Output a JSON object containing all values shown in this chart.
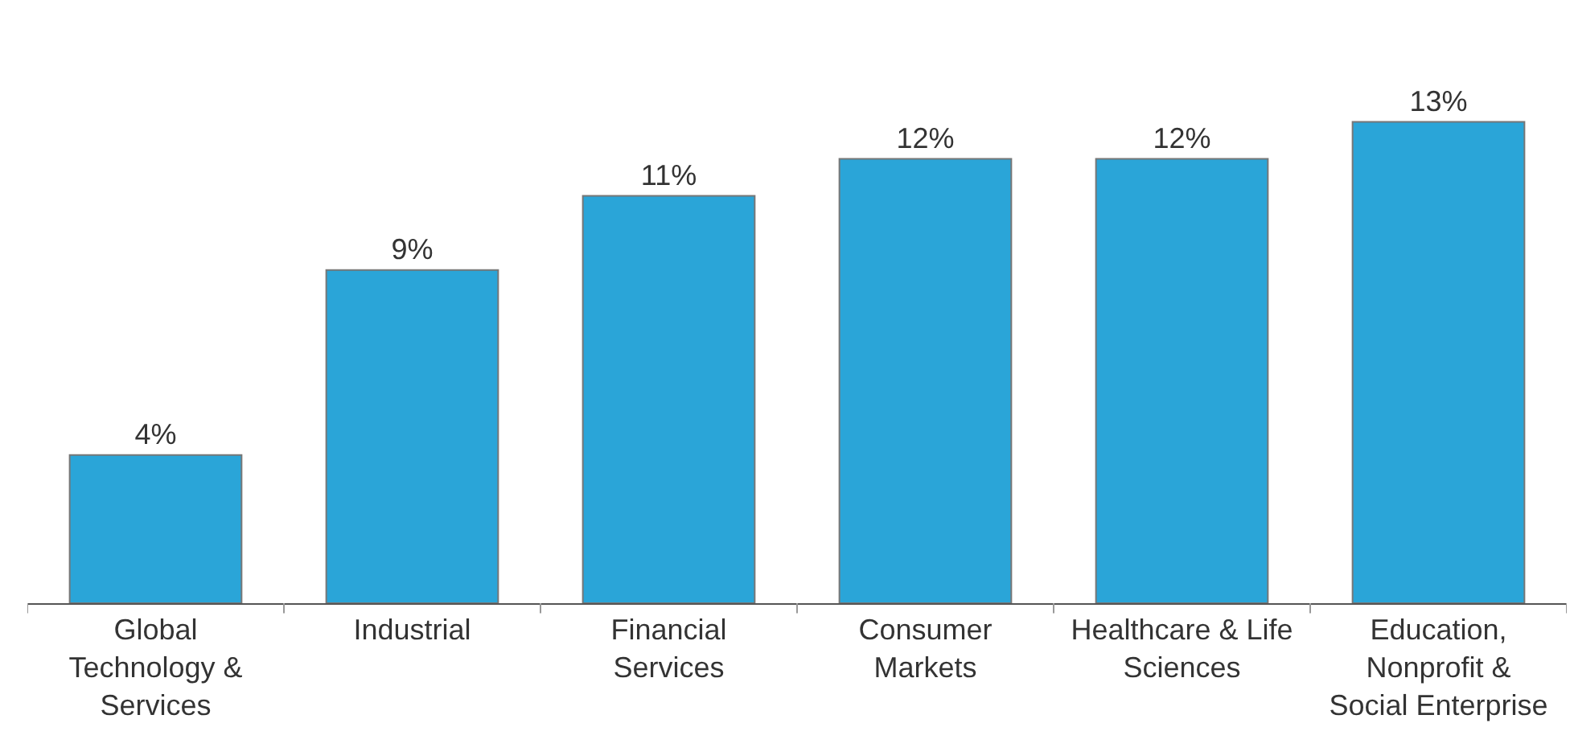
{
  "chart_data": {
    "type": "bar",
    "categories": [
      "Global\nTechnology &\nServices",
      "Industrial",
      "Financial\nServices",
      "Consumer\nMarkets",
      "Healthcare & Life\nSciences",
      "Education,\nNonprofit &\nSocial Enterprise"
    ],
    "values": [
      4,
      9,
      11,
      12,
      12,
      13
    ],
    "value_labels": [
      "4%",
      "9%",
      "11%",
      "12%",
      "12%",
      "13%"
    ],
    "color": "#2aa5d8"
  }
}
